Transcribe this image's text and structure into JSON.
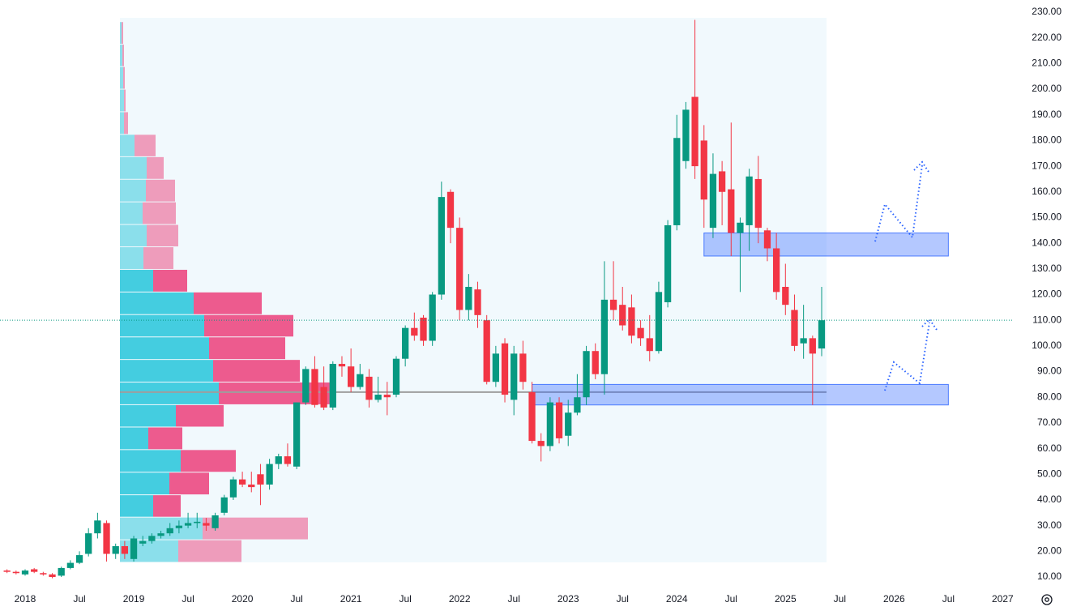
{
  "chart_data": {
    "type": "candlestick",
    "x": [
      "2017-11",
      "2017-12",
      "2018-01",
      "2018-02",
      "2018-03",
      "2018-04",
      "2018-05",
      "2018-06",
      "2018-07",
      "2018-08",
      "2018-09",
      "2018-10",
      "2018-11",
      "2018-12",
      "2019-01",
      "2019-02",
      "2019-03",
      "2019-04",
      "2019-05",
      "2019-06",
      "2019-07",
      "2019-08",
      "2019-09",
      "2019-10",
      "2019-11",
      "2019-12",
      "2020-01",
      "2020-02",
      "2020-03",
      "2020-04",
      "2020-05",
      "2020-06",
      "2020-07",
      "2020-08",
      "2020-09",
      "2020-10",
      "2020-11",
      "2020-12",
      "2021-01",
      "2021-02",
      "2021-03",
      "2021-04",
      "2021-05",
      "2021-06",
      "2021-07",
      "2021-08",
      "2021-09",
      "2021-10",
      "2021-11",
      "2021-12",
      "2022-01",
      "2022-02",
      "2022-03",
      "2022-04",
      "2022-05",
      "2022-06",
      "2022-07",
      "2022-08",
      "2022-09",
      "2022-10",
      "2022-11",
      "2022-12",
      "2023-01",
      "2023-02",
      "2023-03",
      "2023-04",
      "2023-05",
      "2023-06",
      "2023-07",
      "2023-08",
      "2023-09",
      "2023-10",
      "2023-11",
      "2023-12",
      "2024-01",
      "2024-02",
      "2024-03",
      "2024-04",
      "2024-05",
      "2024-06",
      "2024-07",
      "2024-08",
      "2024-09",
      "2024-10",
      "2024-11",
      "2024-12",
      "2025-01",
      "2025-02",
      "2025-03",
      "2025-04",
      "2025-05"
    ],
    "open": [
      12.5,
      12,
      11,
      13,
      11.5,
      11,
      10.5,
      13.5,
      15.5,
      19,
      27,
      31,
      19,
      22,
      17,
      23,
      24,
      26,
      27,
      29,
      30,
      31,
      31,
      29,
      35,
      41,
      48,
      46,
      50,
      46,
      54,
      57,
      53,
      78,
      91,
      84,
      76,
      93,
      92,
      84,
      88,
      79,
      81,
      81,
      95,
      107,
      111,
      102,
      120,
      160,
      146,
      114,
      122,
      110,
      86,
      101,
      79,
      97,
      82,
      63,
      61,
      78,
      65,
      74,
      80,
      98,
      89,
      118,
      116,
      115,
      107,
      103,
      98,
      117,
      147,
      172,
      197,
      180,
      146,
      168,
      161,
      144,
      147,
      165,
      145,
      138,
      123,
      114,
      101,
      103,
      99
    ],
    "high": [
      13,
      12.5,
      13,
      13.5,
      12,
      11.5,
      14,
      16.5,
      20,
      29,
      35,
      32,
      23,
      24,
      26,
      26,
      27,
      28,
      31,
      32,
      35,
      35,
      33,
      35,
      42,
      49,
      51,
      51,
      54,
      56,
      58,
      62,
      78,
      92,
      96,
      92,
      94,
      96,
      99,
      93,
      91,
      88,
      86,
      96,
      108,
      113,
      112,
      121,
      164,
      161,
      150,
      128,
      125,
      112,
      100,
      103,
      100,
      102,
      86,
      66,
      80,
      80,
      79,
      89,
      100,
      101,
      133,
      133,
      123,
      120,
      110,
      112,
      125,
      149,
      190,
      195,
      227,
      186,
      175,
      172,
      187,
      150,
      169,
      174,
      146,
      144,
      132,
      120,
      116,
      104,
      123
    ],
    "low": [
      11.5,
      11,
      10.5,
      11.5,
      10.5,
      9.5,
      10,
      13,
      15,
      18,
      25,
      16,
      17,
      17,
      16,
      22,
      23,
      25,
      26,
      27,
      29,
      29,
      28,
      28,
      34,
      40,
      45,
      43,
      38,
      44,
      52,
      53,
      52,
      77,
      76,
      75,
      75,
      88,
      82,
      83,
      76,
      78,
      73,
      80,
      92,
      102,
      100,
      100,
      118,
      140,
      110,
      110,
      107,
      85,
      84,
      78,
      73,
      83,
      62,
      55,
      59,
      62,
      61,
      73,
      77,
      87,
      81,
      110,
      106,
      101,
      100,
      94,
      97,
      115,
      145,
      169,
      165,
      146,
      142,
      147,
      135,
      121,
      137,
      140,
      133,
      118,
      112,
      98,
      95,
      77,
      96
    ],
    "close": [
      12,
      11.5,
      12.5,
      12,
      11,
      10,
      13.5,
      15.5,
      18.5,
      27,
      32,
      19,
      22,
      19,
      25,
      24,
      26,
      27,
      29,
      30,
      31,
      31.5,
      30,
      34,
      41,
      48,
      46,
      45,
      46,
      54,
      57,
      54,
      78,
      91,
      77,
      76,
      93,
      92,
      84,
      89,
      79,
      81,
      80,
      95,
      107,
      104,
      102,
      120,
      158,
      146,
      114,
      123,
      112,
      86,
      97,
      81,
      97,
      86,
      63,
      61,
      78,
      64,
      74,
      80,
      98,
      89,
      118,
      114,
      108,
      104,
      103,
      98,
      121,
      147,
      181,
      192,
      170,
      157,
      167,
      160,
      144,
      148,
      166,
      146,
      138,
      121,
      116,
      100,
      103,
      97,
      110
    ],
    "up_color": "#089981",
    "down_color": "#f23645",
    "xlim": [
      "2017-10",
      "2027-04"
    ],
    "xticks": [
      {
        "value": "2018-01",
        "label": "2018"
      },
      {
        "value": "2018-07",
        "label": "Jul"
      },
      {
        "value": "2019-01",
        "label": "2019"
      },
      {
        "value": "2019-07",
        "label": "Jul"
      },
      {
        "value": "2020-01",
        "label": "2020"
      },
      {
        "value": "2020-07",
        "label": "Jul"
      },
      {
        "value": "2021-01",
        "label": "2021"
      },
      {
        "value": "2021-07",
        "label": "Jul"
      },
      {
        "value": "2022-01",
        "label": "2022"
      },
      {
        "value": "2022-07",
        "label": "Jul"
      },
      {
        "value": "2023-01",
        "label": "2023"
      },
      {
        "value": "2023-07",
        "label": "Jul"
      },
      {
        "value": "2024-01",
        "label": "2024"
      },
      {
        "value": "2024-07",
        "label": "Jul"
      },
      {
        "value": "2025-01",
        "label": "2025"
      },
      {
        "value": "2025-07",
        "label": "Jul"
      },
      {
        "value": "2026-01",
        "label": "2026"
      },
      {
        "value": "2026-07",
        "label": "Jul"
      },
      {
        "value": "2027-01",
        "label": "2027"
      }
    ],
    "ylim": [
      10,
      230
    ],
    "yticks": [
      {
        "value": 10,
        "label": "10.00"
      },
      {
        "value": 20,
        "label": "20.00"
      },
      {
        "value": 30,
        "label": "30.00"
      },
      {
        "value": 40,
        "label": "40.00"
      },
      {
        "value": 50,
        "label": "50.00"
      },
      {
        "value": 60,
        "label": "60.00"
      },
      {
        "value": 70,
        "label": "70.00"
      },
      {
        "value": 80,
        "label": "80.00"
      },
      {
        "value": 90,
        "label": "90.00"
      },
      {
        "value": 100,
        "label": "100.00"
      },
      {
        "value": 110,
        "label": "110.00"
      },
      {
        "value": 120,
        "label": "120.00"
      },
      {
        "value": 130,
        "label": "130.00"
      },
      {
        "value": 140,
        "label": "140.00"
      },
      {
        "value": 150,
        "label": "150.00"
      },
      {
        "value": 160,
        "label": "160.00"
      },
      {
        "value": 170,
        "label": "170.00"
      },
      {
        "value": 180,
        "label": "180.00"
      },
      {
        "value": 190,
        "label": "190.00"
      },
      {
        "value": 200,
        "label": "200.00"
      },
      {
        "value": 210,
        "label": "210.00"
      },
      {
        "value": 220,
        "label": "220.00"
      },
      {
        "value": 230,
        "label": "230.00"
      }
    ],
    "grid": true,
    "volume_profile": {
      "bins": [
        15.7,
        24.5,
        33.3,
        42.0,
        50.8,
        59.6,
        68.4,
        77.1,
        85.9,
        94.7,
        103.5,
        112.2,
        121.0,
        129.8,
        138.6,
        147.3,
        156.1,
        164.9,
        173.7,
        182.4,
        191.2,
        200.0,
        208.8,
        217.5,
        226.3
      ],
      "up": [
        72,
        102,
        41,
        61,
        75,
        35,
        69,
        122,
        115,
        110,
        104,
        91,
        41,
        29,
        33,
        28,
        32,
        33,
        18,
        5,
        5,
        4,
        3,
        2
      ],
      "down": [
        78,
        130,
        34,
        49,
        68,
        42,
        59,
        137,
        107,
        94,
        110,
        84,
        42,
        37,
        39,
        41,
        36,
        21,
        26,
        5,
        2,
        2,
        2,
        2
      ],
      "value_area": [
        33.3,
        129.8
      ],
      "poc": 82,
      "up_color": "#26c6da",
      "down_color": "#ec407a"
    },
    "zones": [
      {
        "from": "2024-04",
        "to": "2026-07",
        "low": 135,
        "high": 144
      },
      {
        "from": "2022-09",
        "to": "2026-07",
        "low": 77,
        "high": 85
      }
    ],
    "zone_color": "#2962ff"
  }
}
